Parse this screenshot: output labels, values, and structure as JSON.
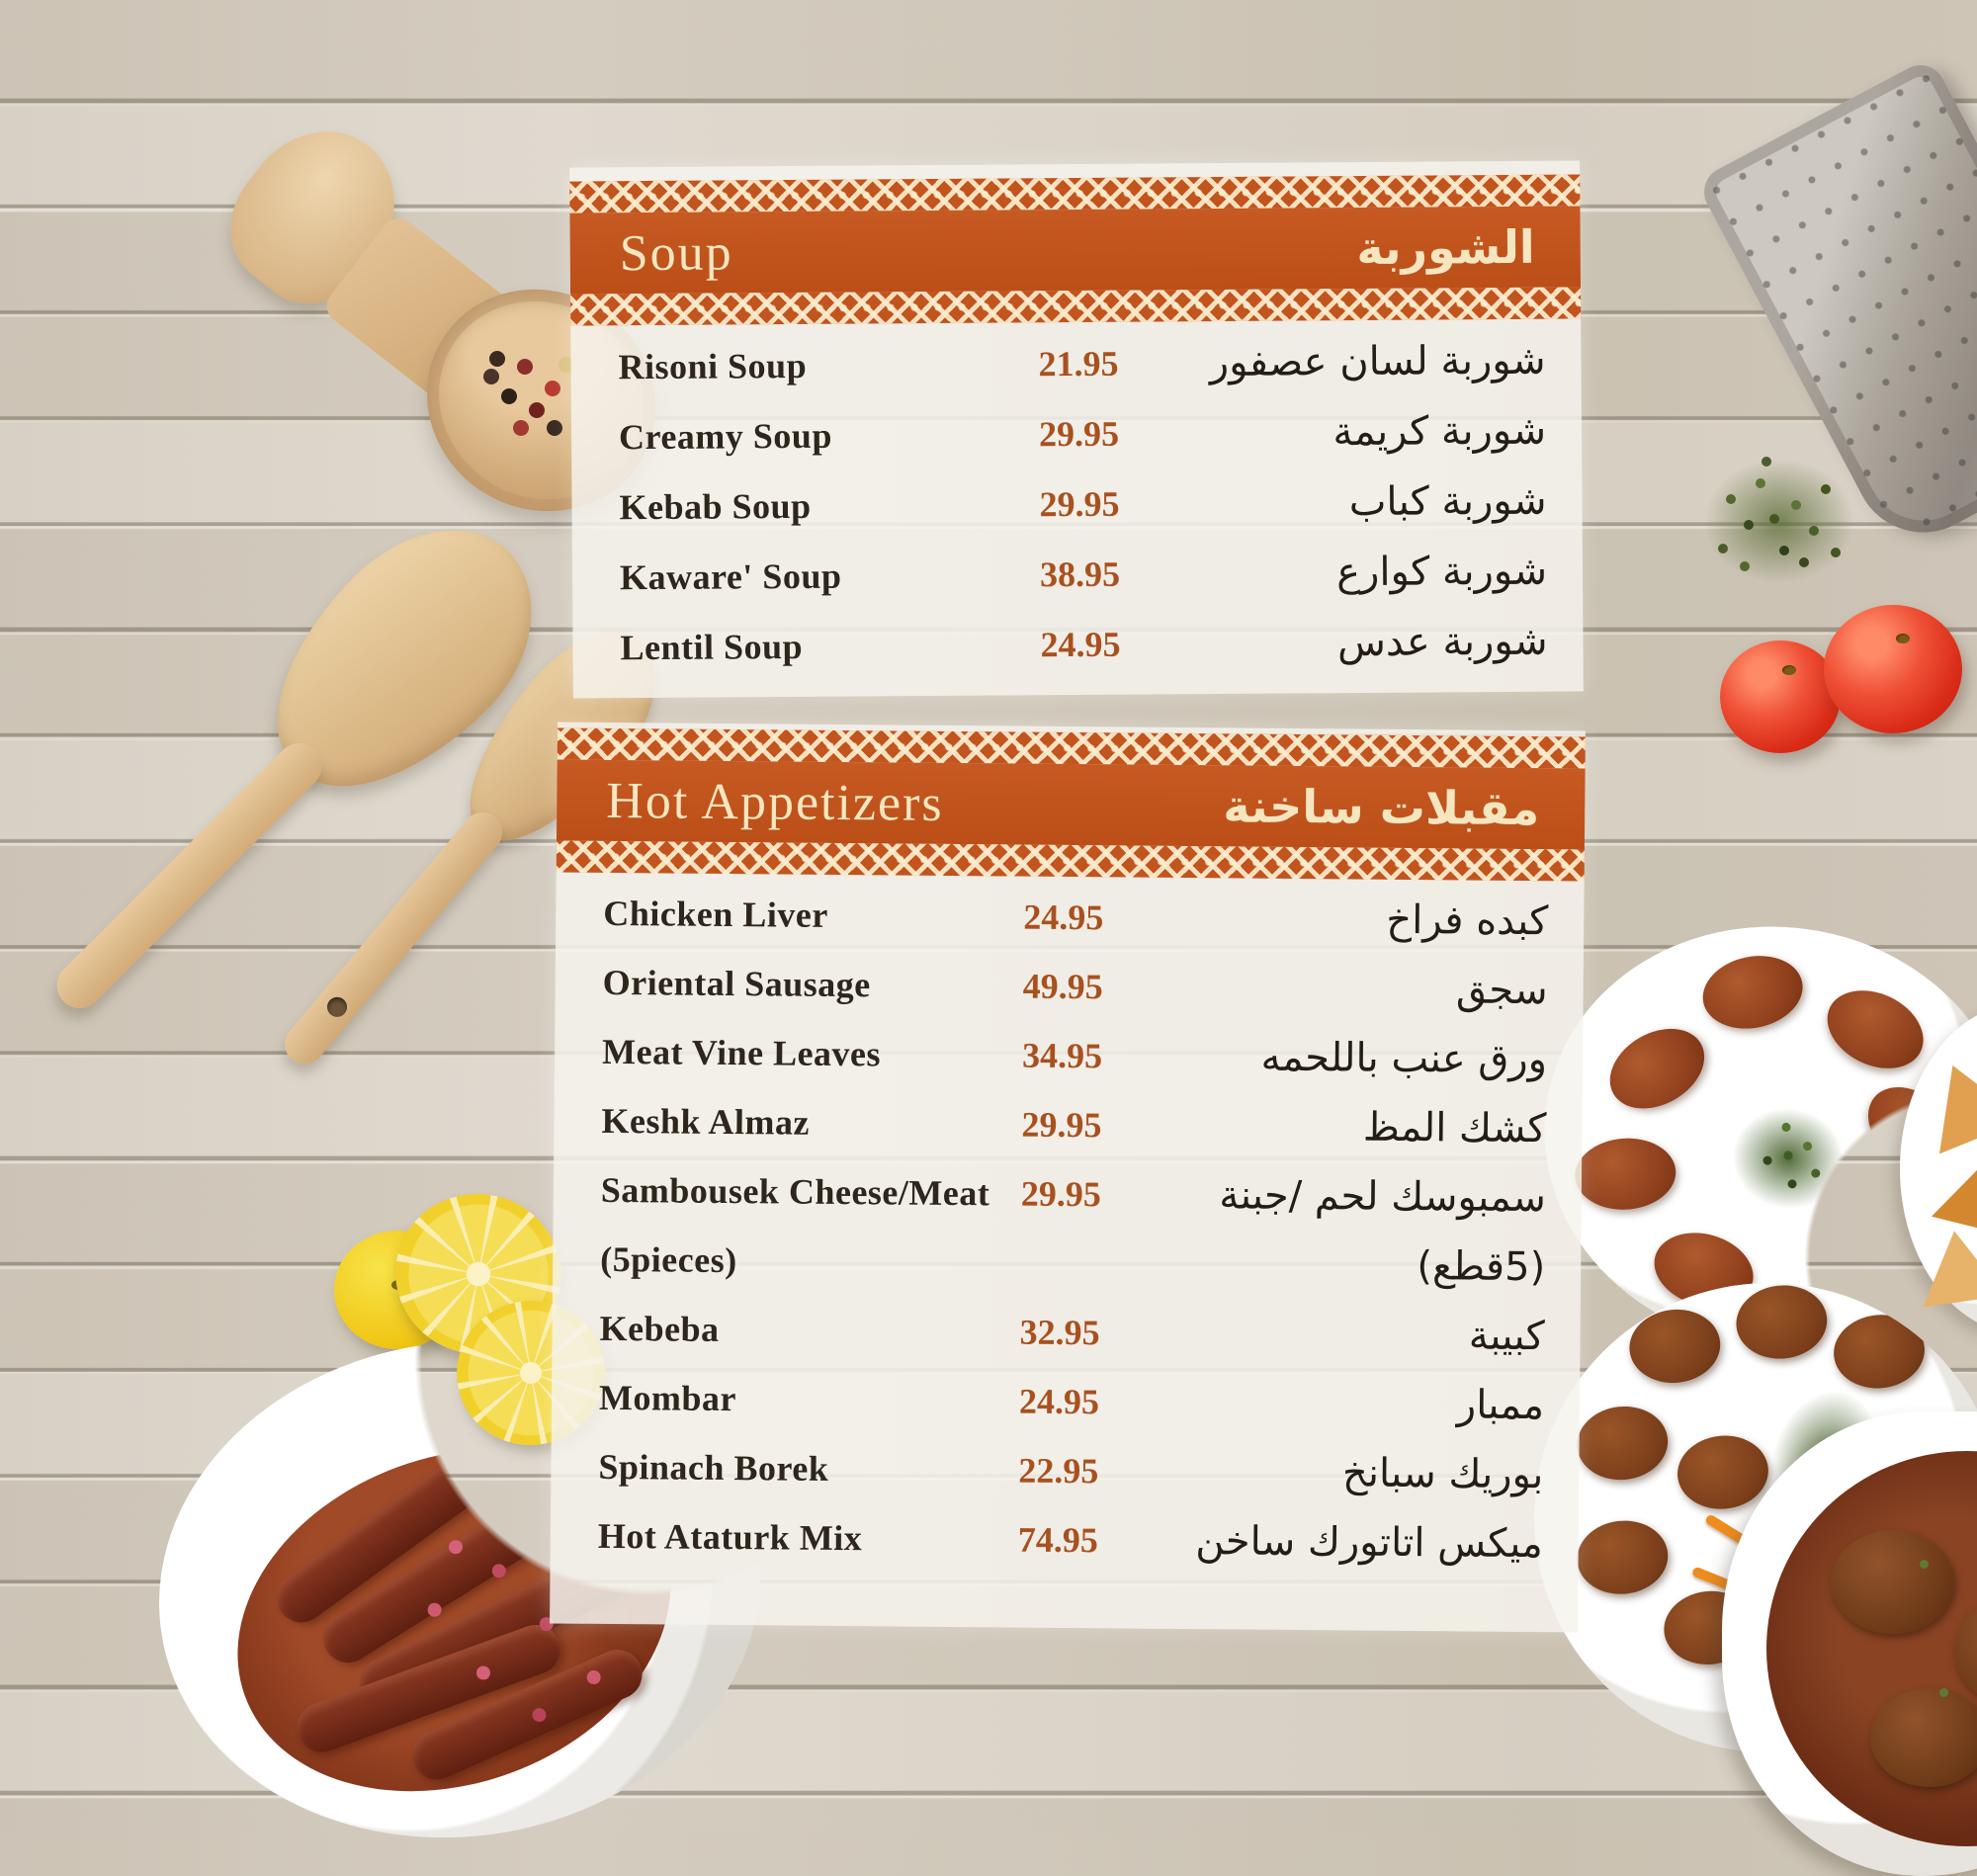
{
  "colors": {
    "accent_orange": "#c2541e",
    "header_text_cream": "#f5e6c0",
    "item_text": "#2e261d",
    "price_text": "#a8511f",
    "panel_overlay": "rgba(246,243,238,0.86)"
  },
  "sections": [
    {
      "title_en": "Soup",
      "title_ar": "الشوربة",
      "items": [
        {
          "en": "Risoni Soup",
          "price": "21.95",
          "ar": "شوربة لسان عصفور"
        },
        {
          "en": "Creamy Soup",
          "price": "29.95",
          "ar": "شوربة كريمة"
        },
        {
          "en": "Kebab Soup",
          "price": "29.95",
          "ar": "شوربة كباب"
        },
        {
          "en": "Kaware' Soup",
          "price": "38.95",
          "ar": "شوربة كوارع"
        },
        {
          "en": "Lentil Soup",
          "price": "24.95",
          "ar": "شوربة عدس"
        }
      ]
    },
    {
      "title_en": "Hot Appetizers",
      "title_ar": "مقبلات ساخنة",
      "items": [
        {
          "en": "Chicken Liver",
          "price": "24.95",
          "ar": "كبده فراخ"
        },
        {
          "en": "Oriental Sausage",
          "price": "49.95",
          "ar": "سجق"
        },
        {
          "en": "Meat Vine Leaves",
          "price": "34.95",
          "ar": "ورق عنب باللحمه"
        },
        {
          "en": "Keshk Almaz",
          "price": "29.95",
          "ar": "كشك المظ"
        },
        {
          "en": "Sambousek Cheese/Meat",
          "price": "29.95",
          "ar": "سمبوسك لحم /جبنة"
        },
        {
          "en": "(5pieces)",
          "price": "",
          "ar": "(5قطع)"
        },
        {
          "en": "Kebeba",
          "price": "32.95",
          "ar": "كبيبة"
        },
        {
          "en": "Mombar",
          "price": "24.95",
          "ar": "ممبار"
        },
        {
          "en": "Spinach Borek",
          "price": "22.95",
          "ar": "بوريك سبانخ"
        },
        {
          "en": "Hot Ataturk Mix",
          "price": "74.95",
          "ar": "ميكس اتاتورك ساخن"
        }
      ]
    }
  ]
}
